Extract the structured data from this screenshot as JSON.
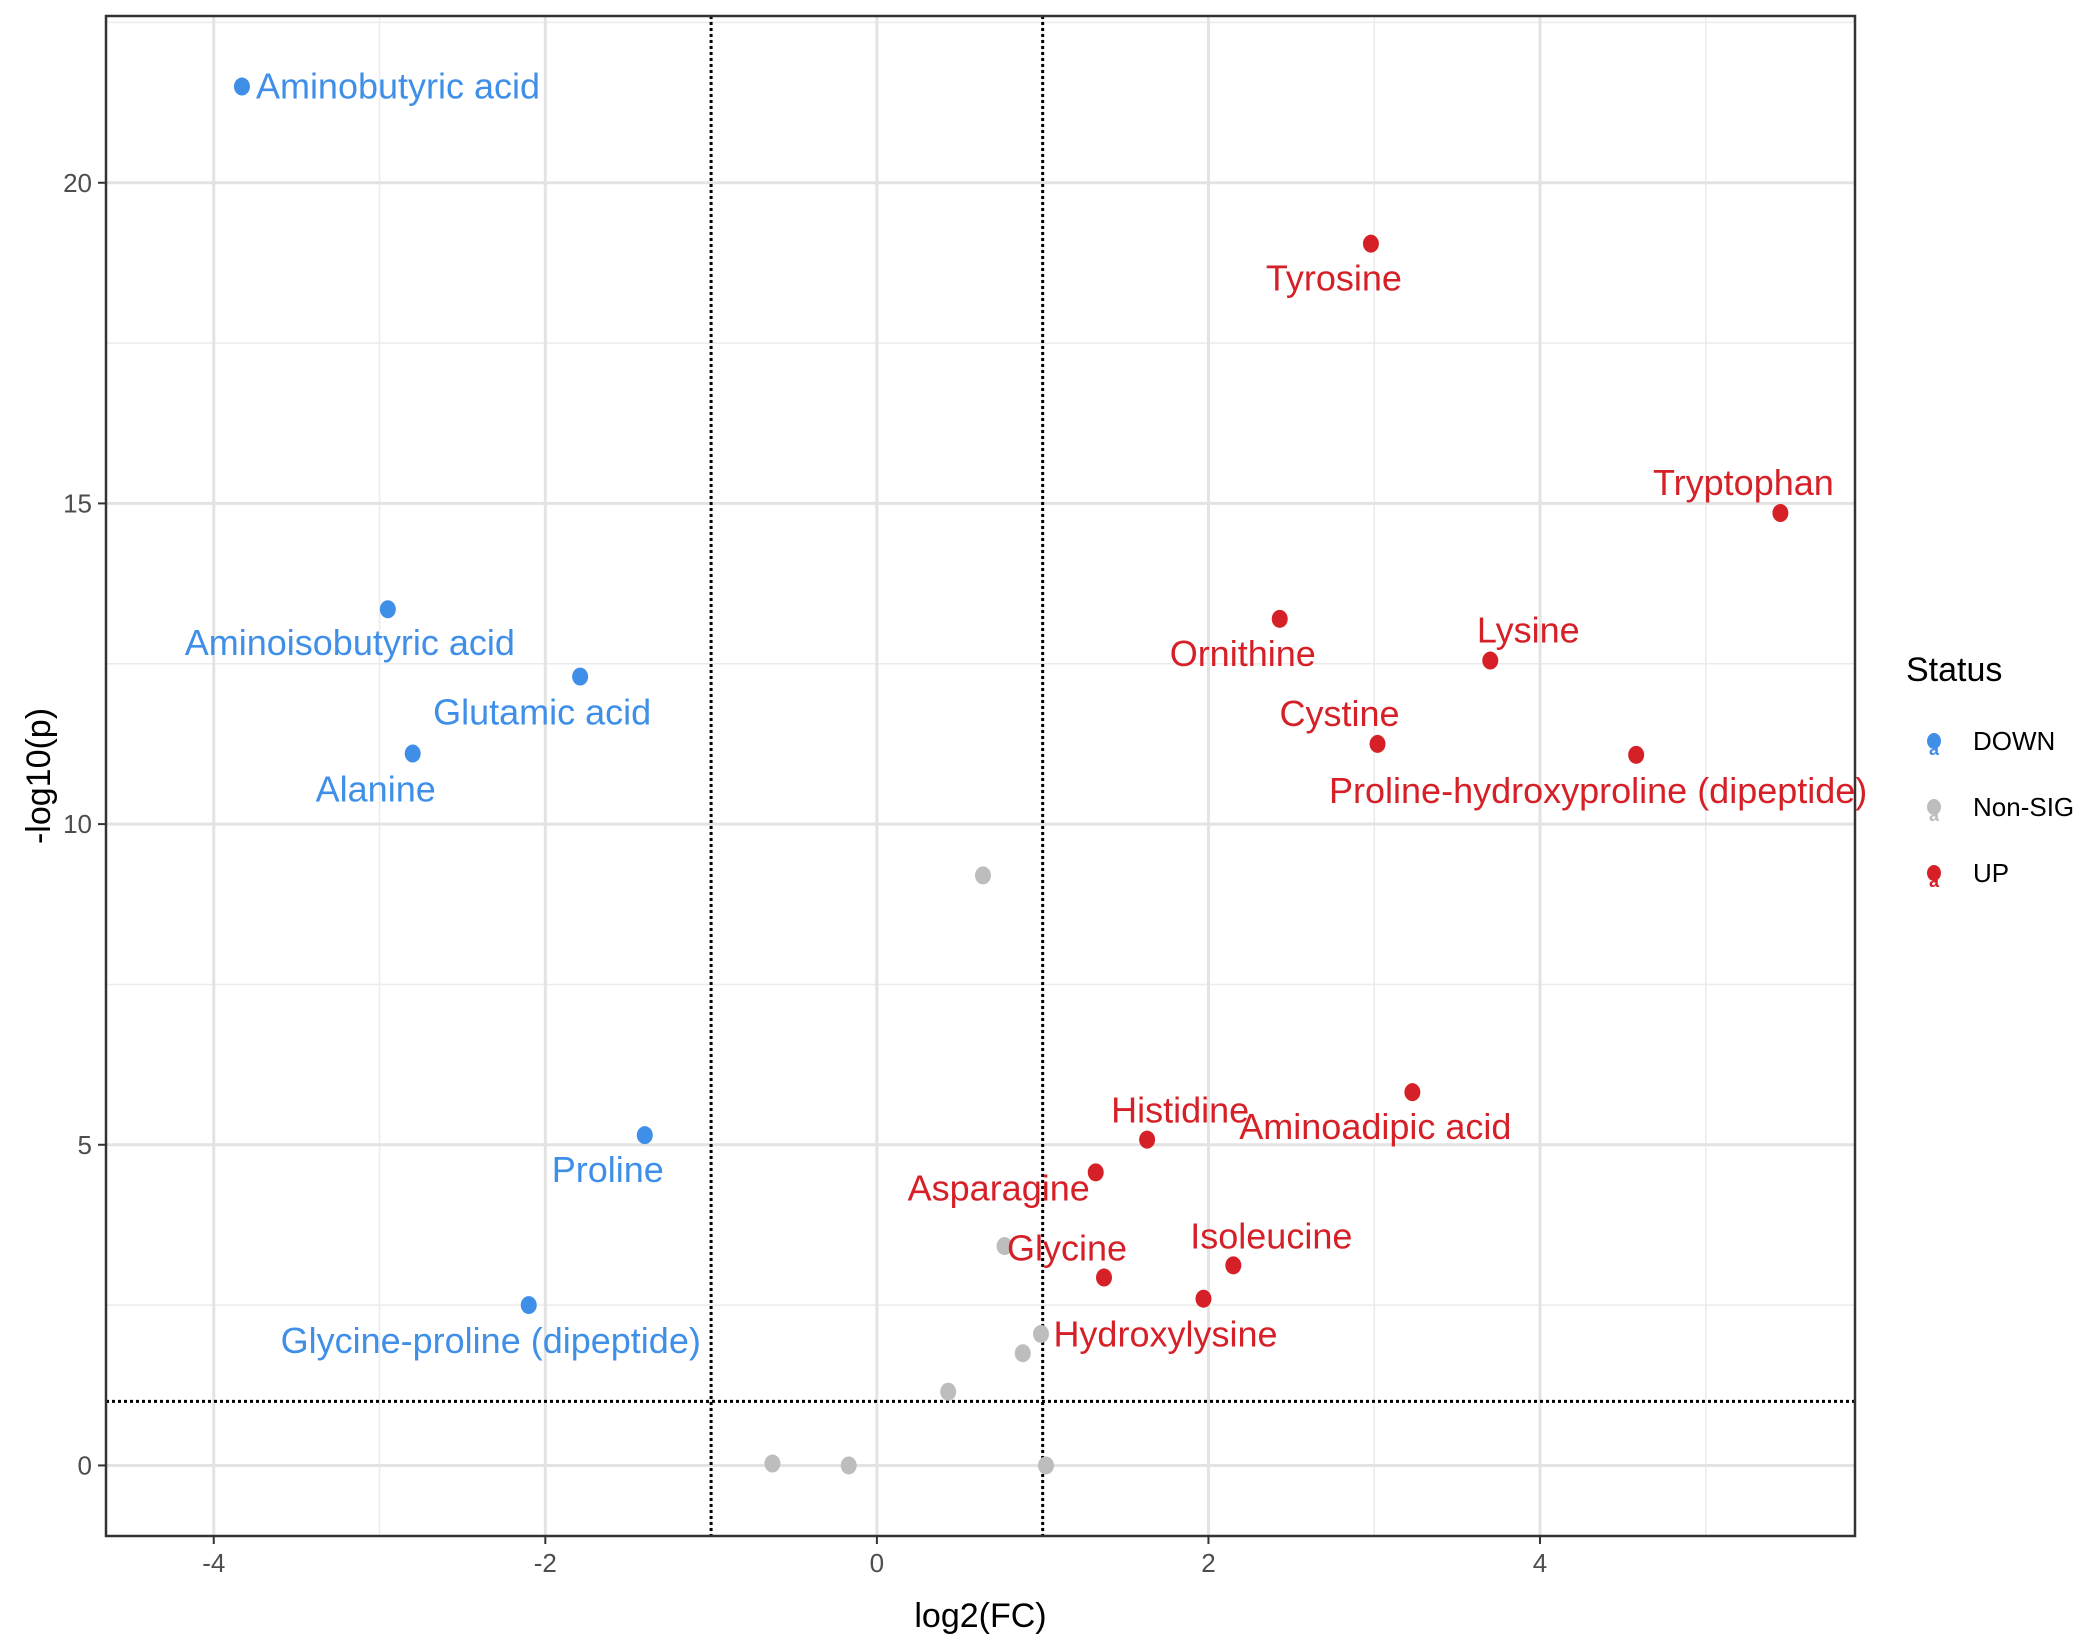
{
  "chart_data": {
    "type": "scatter",
    "title": "",
    "xlabel": "log2(FC)",
    "ylabel": "-log10(p)",
    "xlim": [
      -4.65,
      5.9
    ],
    "ylim": [
      -1.1,
      22.6
    ],
    "xticks": [
      -4,
      -2,
      0,
      2,
      4
    ],
    "yticks": [
      0,
      5,
      10,
      15,
      20
    ],
    "x_thresholds": [
      -1,
      1
    ],
    "y_threshold": 1,
    "grid": true,
    "legend": {
      "title": "Status",
      "position": "right",
      "entries": [
        {
          "name": "DOWN",
          "color": "#3f8fe9"
        },
        {
          "name": "Non-SIG",
          "color": "#bdbdbd"
        },
        {
          "name": "UP",
          "color": "#d62027"
        }
      ]
    },
    "colors": {
      "DOWN": "#3f8fe9",
      "Non-SIG": "#bdbdbd",
      "UP": "#d62027"
    },
    "points": [
      {
        "label": "Aminobutyric acid",
        "status": "DOWN",
        "x": -3.83,
        "y": 21.5
      },
      {
        "label": "Aminoisobutyric acid",
        "status": "DOWN",
        "x": -2.95,
        "y": 13.35
      },
      {
        "label": "Glutamic acid",
        "status": "DOWN",
        "x": -1.79,
        "y": 12.3
      },
      {
        "label": "Alanine",
        "status": "DOWN",
        "x": -2.8,
        "y": 11.1
      },
      {
        "label": "Proline",
        "status": "DOWN",
        "x": -1.4,
        "y": 5.15
      },
      {
        "label": "Glycine-proline (dipeptide)",
        "status": "DOWN",
        "x": -2.1,
        "y": 2.5
      },
      {
        "label": "Tyrosine",
        "status": "UP",
        "x": 2.98,
        "y": 19.05
      },
      {
        "label": "Tryptophan",
        "status": "UP",
        "x": 5.45,
        "y": 14.85
      },
      {
        "label": "Ornithine",
        "status": "UP",
        "x": 2.43,
        "y": 13.2
      },
      {
        "label": "Lysine",
        "status": "UP",
        "x": 3.7,
        "y": 12.55
      },
      {
        "label": "Cystine",
        "status": "UP",
        "x": 3.02,
        "y": 11.25
      },
      {
        "label": "Proline-hydroxyproline (dipeptide)",
        "status": "UP",
        "x": 4.58,
        "y": 11.08
      },
      {
        "label": "Aminoadipic acid",
        "status": "UP",
        "x": 3.23,
        "y": 5.82
      },
      {
        "label": "Histidine",
        "status": "UP",
        "x": 1.63,
        "y": 5.08
      },
      {
        "label": "Asparagine",
        "status": "UP",
        "x": 1.32,
        "y": 4.57
      },
      {
        "label": "Isoleucine",
        "status": "UP",
        "x": 2.15,
        "y": 3.12
      },
      {
        "label": "Glycine",
        "status": "UP",
        "x": 1.37,
        "y": 2.93
      },
      {
        "label": "Hydroxylysine",
        "status": "UP",
        "x": 1.97,
        "y": 2.6
      },
      {
        "label": "",
        "status": "Non-SIG",
        "x": 0.64,
        "y": 9.2
      },
      {
        "label": "",
        "status": "Non-SIG",
        "x": 0.77,
        "y": 3.42
      },
      {
        "label": "",
        "status": "Non-SIG",
        "x": 0.99,
        "y": 2.05
      },
      {
        "label": "",
        "status": "Non-SIG",
        "x": 0.88,
        "y": 1.75
      },
      {
        "label": "",
        "status": "Non-SIG",
        "x": 0.43,
        "y": 1.15
      },
      {
        "label": "",
        "status": "Non-SIG",
        "x": -0.63,
        "y": 0.03
      },
      {
        "label": "",
        "status": "Non-SIG",
        "x": -0.17,
        "y": 0.0
      },
      {
        "label": "",
        "status": "Non-SIG",
        "x": 1.02,
        "y": 0.0
      }
    ]
  }
}
